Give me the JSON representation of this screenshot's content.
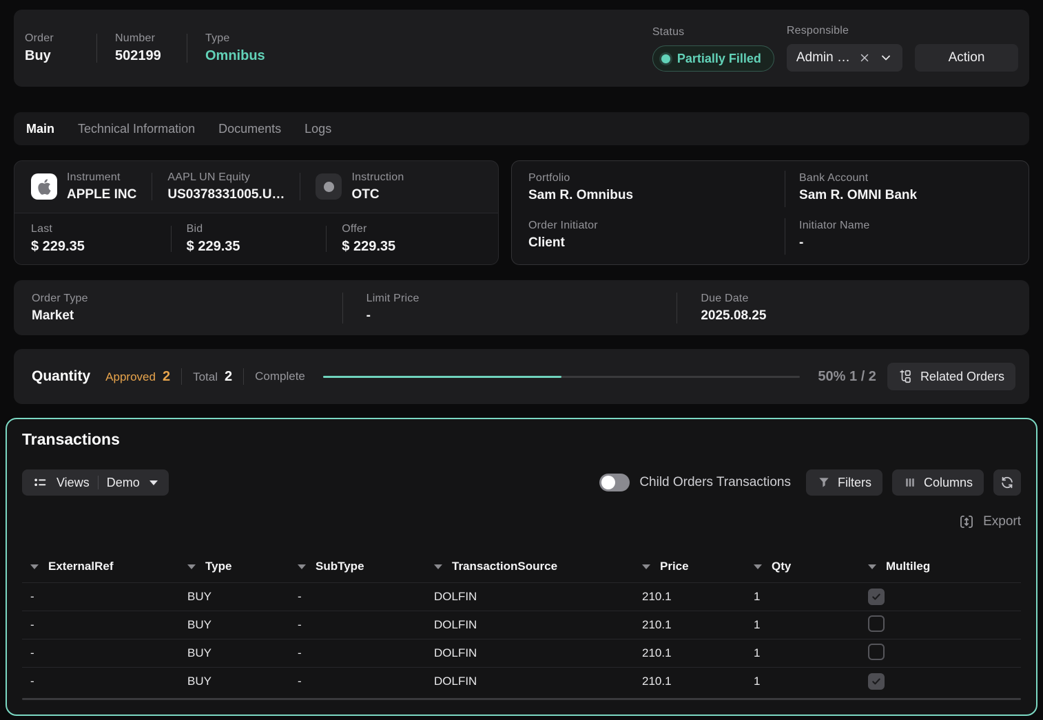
{
  "header": {
    "order": {
      "label": "Order",
      "value": "Buy"
    },
    "number": {
      "label": "Number",
      "value": "502199"
    },
    "type": {
      "label": "Type",
      "value": "Omnibus"
    },
    "status": {
      "label": "Status",
      "value": "Partially Filled"
    },
    "responsible": {
      "label": "Responsible",
      "value": "Admin …"
    },
    "action_label": "Action"
  },
  "tabs": [
    {
      "label": "Main",
      "active": true
    },
    {
      "label": "Technical Information",
      "active": false
    },
    {
      "label": "Documents",
      "active": false
    },
    {
      "label": "Logs",
      "active": false
    }
  ],
  "instrument": {
    "name": {
      "label": "Instrument",
      "value": "APPLE INC"
    },
    "ticker": {
      "label": "AAPL UN Equity",
      "value": "US0378331005.U…"
    },
    "instruction": {
      "label": "Instruction",
      "value": "OTC"
    },
    "last": {
      "label": "Last",
      "value": "$ 229.35"
    },
    "bid": {
      "label": "Bid",
      "value": "$ 229.35"
    },
    "offer": {
      "label": "Offer",
      "value": "$ 229.35"
    }
  },
  "portfolio": {
    "portfolio": {
      "label": "Portfolio",
      "value": "Sam R. Omnibus"
    },
    "bank_account": {
      "label": "Bank Account",
      "value": "Sam R. OMNI Bank"
    },
    "order_initiator": {
      "label": "Order Initiator",
      "value": "Client"
    },
    "initiator_name": {
      "label": "Initiator Name",
      "value": "-"
    }
  },
  "order_details": {
    "order_type": {
      "label": "Order Type",
      "value": "Market"
    },
    "limit_price": {
      "label": "Limit Price",
      "value": "-"
    },
    "due_date": {
      "label": "Due Date",
      "value": "2025.08.25"
    }
  },
  "quantity": {
    "title": "Quantity",
    "approved_label": "Approved",
    "approved_value": "2",
    "total_label": "Total",
    "total_value": "2",
    "complete_label": "Complete",
    "progress_pct": 50,
    "progress_text": "50% 1 / 2",
    "related_orders_label": "Related Orders"
  },
  "transactions": {
    "title": "Transactions",
    "views_label": "Views",
    "views_value": "Demo",
    "child_orders_toggle": {
      "label": "Child Orders Transactions",
      "on": false
    },
    "filters_label": "Filters",
    "columns_label": "Columns",
    "export_label": "Export",
    "table": {
      "columns": [
        "ExternalRef",
        "Type",
        "SubType",
        "TransactionSource",
        "Price",
        "Qty",
        "Multileg"
      ],
      "rows": [
        {
          "externalRef": "-",
          "type": "BUY",
          "subType": "-",
          "source": "DOLFIN",
          "price": "210.1",
          "qty": "1",
          "multileg": true
        },
        {
          "externalRef": "-",
          "type": "BUY",
          "subType": "-",
          "source": "DOLFIN",
          "price": "210.1",
          "qty": "1",
          "multileg": false
        },
        {
          "externalRef": "-",
          "type": "BUY",
          "subType": "-",
          "source": "DOLFIN",
          "price": "210.1",
          "qty": "1",
          "multileg": false
        },
        {
          "externalRef": "-",
          "type": "BUY",
          "subType": "-",
          "source": "DOLFIN",
          "price": "210.1",
          "qty": "1",
          "multileg": true
        }
      ]
    }
  },
  "colors": {
    "accent_teal": "#62d2b8",
    "panel_border_teal": "#7cd9c4",
    "approved_orange": "#e9a54c",
    "progress_teal": "#6fd4bd"
  }
}
